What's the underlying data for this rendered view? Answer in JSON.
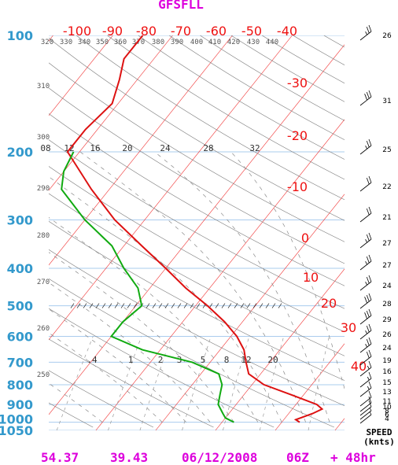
{
  "title": "GFSFLL",
  "footer": {
    "lat": "54.37",
    "lon": "39.43",
    "date": "06/12/2008",
    "hour": "06Z",
    "forecast": "+ 48hr"
  },
  "speed_label": "SPEED",
  "speed_units": "(knts)",
  "colors": {
    "title": "#dd00dd",
    "pressure": "#3399cc",
    "isotherm": "#ee1111",
    "temperature": "#dd1111",
    "dewpoint": "#11aa11",
    "adiabat": "#777777",
    "grid": "#aaccee"
  },
  "chart_data": {
    "type": "line",
    "chart_kind": "skew-T log-P sounding",
    "pressure_levels": [
      100,
      200,
      300,
      400,
      500,
      600,
      700,
      800,
      900,
      1000,
      1050
    ],
    "pressure_tick_labels": [
      "100",
      "200",
      "300",
      "400",
      "500",
      "600",
      "700",
      "800",
      "900",
      "1000",
      "1050"
    ],
    "isotherm_labels": [
      "-100",
      "-90",
      "-80",
      "-70",
      "-60",
      "-50",
      "-40",
      "-30",
      "-20",
      "-10",
      "0",
      "10",
      "20",
      "30",
      "40"
    ],
    "theta_labels": [
      "320",
      "330",
      "340",
      "350",
      "360",
      "370",
      "380",
      "390",
      "400",
      "410",
      "420",
      "430",
      "440",
      "310",
      "300",
      "290",
      "280",
      "270",
      "260",
      "250"
    ],
    "mixing_ratio_top_labels": [
      "08",
      "12",
      "16",
      "20",
      "24",
      "28",
      "32"
    ],
    "mixing_ratio_bottom_labels": [
      ".4",
      "1",
      "2",
      "3",
      "5",
      "8",
      "12",
      "20"
    ],
    "series": [
      {
        "name": "temperature",
        "points": [
          [
            1000,
            23
          ],
          [
            985,
            22
          ],
          [
            950,
            24
          ],
          [
            925,
            25
          ],
          [
            900,
            23.5
          ],
          [
            850,
            18
          ],
          [
            800,
            12
          ],
          [
            750,
            8
          ],
          [
            700,
            6
          ],
          [
            650,
            4
          ],
          [
            600,
            1
          ],
          [
            550,
            -3
          ],
          [
            500,
            -8
          ],
          [
            450,
            -14
          ],
          [
            400,
            -20
          ],
          [
            350,
            -27
          ],
          [
            300,
            -35
          ],
          [
            250,
            -43
          ],
          [
            200,
            -52
          ],
          [
            175,
            -52
          ],
          [
            150,
            -51
          ],
          [
            130,
            -53
          ],
          [
            115,
            -55
          ],
          [
            100,
            -55
          ]
        ]
      },
      {
        "name": "dewpoint",
        "points": [
          [
            1000,
            12
          ],
          [
            975,
            10
          ],
          [
            950,
            9
          ],
          [
            900,
            7
          ],
          [
            850,
            6
          ],
          [
            800,
            5
          ],
          [
            750,
            3
          ],
          [
            700,
            -3
          ],
          [
            650,
            -13
          ],
          [
            600,
            -20
          ],
          [
            550,
            -20
          ],
          [
            500,
            -19
          ],
          [
            450,
            -22
          ],
          [
            400,
            -27
          ],
          [
            350,
            -32
          ],
          [
            300,
            -40
          ],
          [
            250,
            -48
          ],
          [
            225,
            -50
          ],
          [
            200,
            -51
          ]
        ]
      }
    ],
    "wind_speed_knts": [
      26,
      31,
      25,
      22,
      21,
      27,
      27,
      24,
      28,
      29,
      26,
      24,
      19,
      16,
      15,
      13,
      11,
      10,
      8,
      6,
      4
    ],
    "xrange_degC": [
      -40,
      43
    ],
    "yrange_hPa": [
      100,
      1050
    ],
    "grid": true,
    "yscale": "log"
  }
}
